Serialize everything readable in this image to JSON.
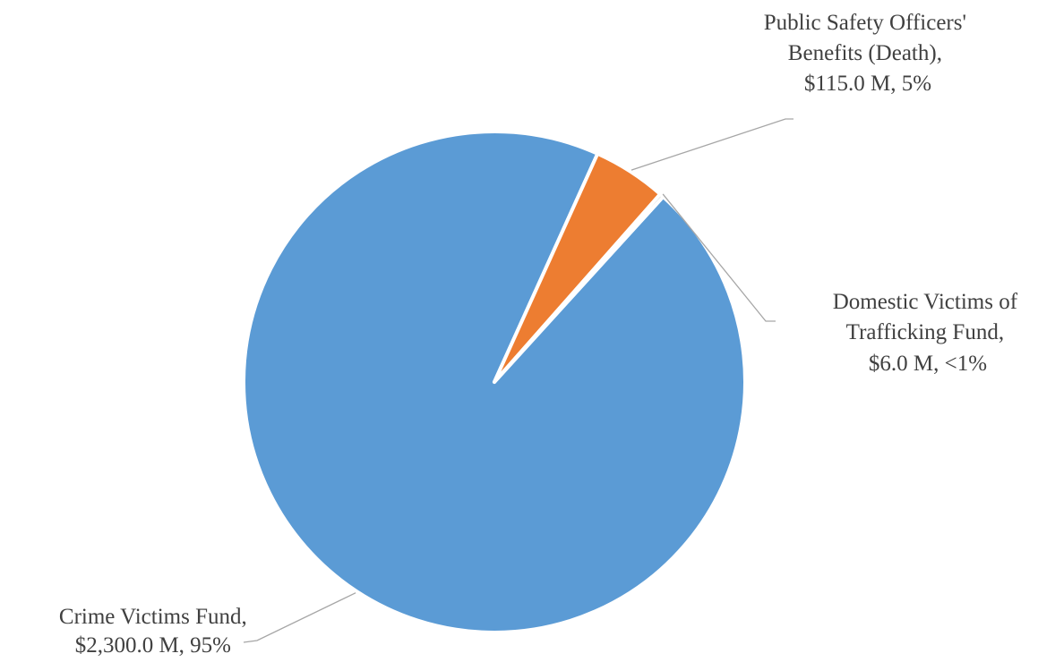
{
  "chart_data": {
    "type": "pie",
    "title": "",
    "slices": [
      {
        "name": "Crime Victims Fund",
        "value": 2300.0,
        "color": "#5b9bd5",
        "label_lines": [
          "Crime Victims Fund,",
          "$2,300.0 M, 95%"
        ]
      },
      {
        "name": "Public Safety Officers' Benefits (Death)",
        "value": 115.0,
        "color": "#ed7d31",
        "label_lines": [
          "Public Safety Officers'",
          "Benefits (Death),",
          "$115.0 M, 5%"
        ]
      },
      {
        "name": "Domestic Victims of Trafficking Fund",
        "value": 6.0,
        "color": "#a5a5a5",
        "label_lines": [
          "Domestic Victims of",
          "Trafficking Fund,",
          "$6.0 M, <1%"
        ]
      }
    ],
    "legend": "none"
  }
}
